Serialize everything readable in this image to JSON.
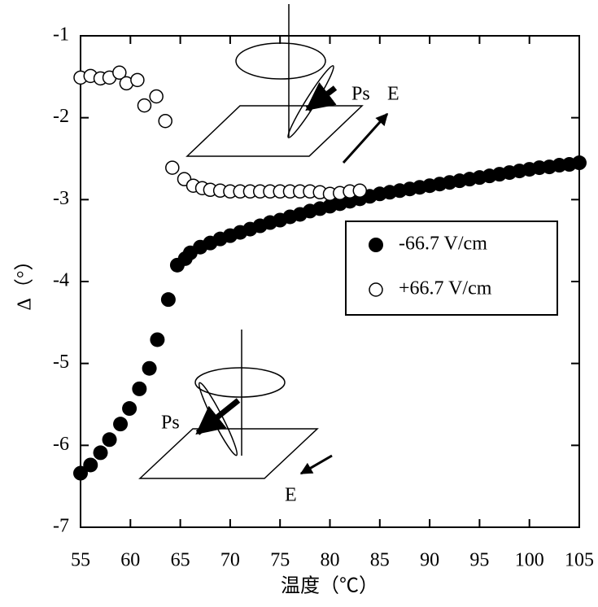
{
  "chart_data": {
    "type": "scatter",
    "xlabel": "温度（℃）",
    "ylabel": "Δ（°）",
    "xlim": [
      55,
      105
    ],
    "ylim": [
      -7,
      -1
    ],
    "xticks": [
      55,
      60,
      65,
      70,
      75,
      80,
      85,
      90,
      95,
      100,
      105
    ],
    "yticks": [
      -7,
      -6,
      -5,
      -4,
      -3,
      -2,
      -1
    ],
    "legend": "right",
    "annotations": [
      "Ps",
      "E",
      "Ps",
      "E"
    ],
    "series": [
      {
        "name": "-66.7 V/cm",
        "color": "#000000",
        "marker": "filled",
        "x": [
          55,
          56,
          57,
          57.9,
          59,
          59.9,
          60.9,
          61.9,
          62.7,
          63.8,
          64.7,
          65.5,
          66,
          67,
          68,
          69,
          70,
          71,
          72,
          73,
          74,
          75,
          76,
          77,
          78,
          79,
          80,
          81,
          82,
          83,
          84,
          85,
          86,
          87,
          88,
          89,
          90,
          91,
          92,
          93,
          94,
          95,
          96,
          97,
          98,
          99,
          100,
          101,
          102,
          103,
          104,
          105
        ],
        "values": [
          -6.34,
          -6.24,
          -6.09,
          -5.93,
          -5.74,
          -5.55,
          -5.31,
          -5.06,
          -4.71,
          -4.22,
          -3.8,
          -3.72,
          -3.65,
          -3.58,
          -3.53,
          -3.48,
          -3.44,
          -3.4,
          -3.36,
          -3.32,
          -3.28,
          -3.25,
          -3.21,
          -3.18,
          -3.14,
          -3.11,
          -3.08,
          -3.05,
          -3.02,
          -2.99,
          -2.96,
          -2.93,
          -2.91,
          -2.89,
          -2.87,
          -2.85,
          -2.83,
          -2.81,
          -2.79,
          -2.77,
          -2.75,
          -2.73,
          -2.71,
          -2.69,
          -2.67,
          -2.65,
          -2.63,
          -2.61,
          -2.6,
          -2.58,
          -2.57,
          -2.55
        ]
      },
      {
        "name": "+66.7 V/cm",
        "color": "#000000",
        "marker": "open",
        "x": [
          55,
          56,
          57,
          57.9,
          58.9,
          59.6,
          60.7,
          61.4,
          62.6,
          63.5,
          64.2,
          65.4,
          66.3,
          67.2,
          68,
          69,
          70,
          71,
          72,
          73,
          74,
          75,
          76,
          77,
          78,
          79,
          80,
          81,
          82,
          83
        ],
        "values": [
          -1.51,
          -1.49,
          -1.52,
          -1.51,
          -1.45,
          -1.58,
          -1.54,
          -1.85,
          -1.74,
          -2.04,
          -2.61,
          -2.75,
          -2.83,
          -2.86,
          -2.88,
          -2.89,
          -2.9,
          -2.9,
          -2.9,
          -2.9,
          -2.9,
          -2.9,
          -2.9,
          -2.9,
          -2.9,
          -2.91,
          -2.93,
          -2.92,
          -2.9,
          -2.89
        ]
      }
    ]
  }
}
